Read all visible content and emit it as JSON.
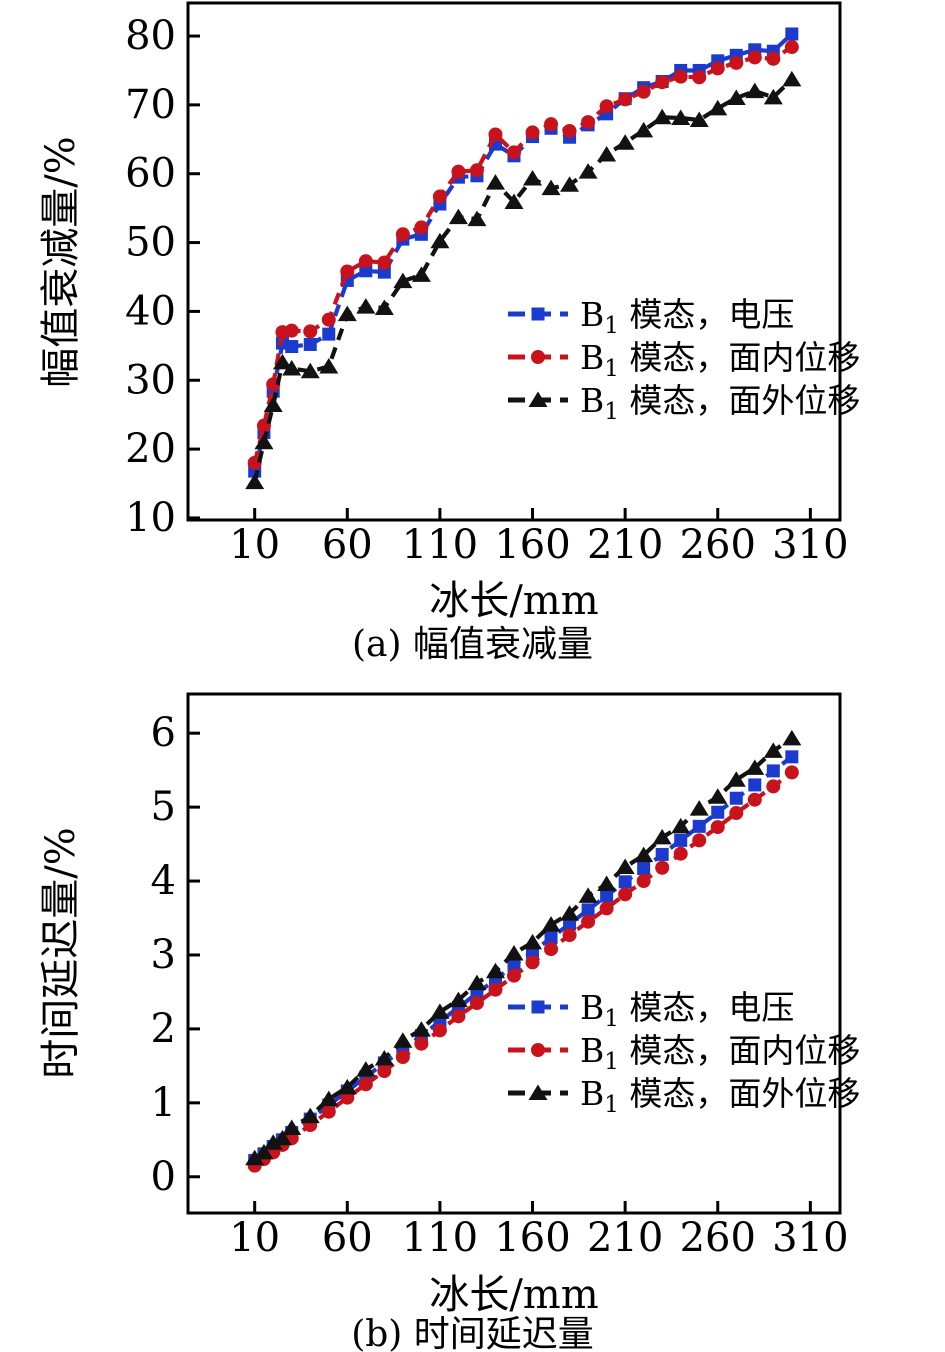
{
  "figure": {
    "background": "#ffffff",
    "axis_color": "#000000"
  },
  "chart_data": [
    {
      "id": "amplitude",
      "type": "line",
      "caption": "(a) 幅值衰减量",
      "xlabel": "冰长/mm",
      "ylabel": "幅值衰减量/%",
      "xlim": [
        -26,
        326
      ],
      "ylim": [
        9.7,
        84.8
      ],
      "xticks": [
        10,
        60,
        110,
        160,
        210,
        260,
        310
      ],
      "yticks": [
        10,
        20,
        30,
        40,
        50,
        60,
        70,
        80
      ],
      "grid": false,
      "legend_position": "inside-bottom-right",
      "x": [
        10,
        15,
        20,
        25,
        30,
        40,
        50,
        60,
        70,
        80,
        90,
        100,
        110,
        120,
        130,
        140,
        150,
        160,
        170,
        180,
        190,
        200,
        210,
        220,
        230,
        240,
        250,
        260,
        270,
        280,
        290,
        300
      ],
      "series": [
        {
          "key": "voltage",
          "marker": "square",
          "color": "#1b3bcf",
          "legend": {
            "pre": "B",
            "sub": "1",
            "post": " 模态，电压"
          },
          "values": [
            16.8,
            22.4,
            28.4,
            35.4,
            34.9,
            35.2,
            36.7,
            44.5,
            45.9,
            45.7,
            50.5,
            51.2,
            55.6,
            59.5,
            59.7,
            64.3,
            62.6,
            65.4,
            66.6,
            65.3,
            67.1,
            68.7,
            70.9,
            72.5,
            73.4,
            75.0,
            75.0,
            76.4,
            77.2,
            78.0,
            77.8,
            80.3
          ]
        },
        {
          "key": "in-plane",
          "marker": "circle",
          "color": "#c8131c",
          "legend": {
            "pre": "B",
            "sub": "1",
            "post": " 模态，面内位移"
          },
          "values": [
            18.0,
            23.4,
            29.4,
            37.0,
            37.2,
            37.1,
            38.8,
            45.8,
            47.3,
            47.1,
            51.2,
            52.2,
            56.7,
            60.3,
            60.5,
            65.7,
            63.1,
            66.0,
            67.2,
            66.2,
            67.5,
            69.8,
            70.8,
            71.9,
            73.3,
            74.1,
            74.0,
            75.3,
            76.1,
            76.9,
            76.7,
            78.4
          ]
        },
        {
          "key": "out-of-plane",
          "marker": "triangle",
          "color": "#121212",
          "legend": {
            "pre": "B",
            "sub": "1",
            "post": " 模态，面外位移"
          },
          "values": [
            15.2,
            21.0,
            26.4,
            32.6,
            31.7,
            31.3,
            32.0,
            39.6,
            40.7,
            40.5,
            44.4,
            45.3,
            50.2,
            53.7,
            53.4,
            58.7,
            55.9,
            59.3,
            57.9,
            58.4,
            60.3,
            62.8,
            64.5,
            66.3,
            68.2,
            68.1,
            67.8,
            69.5,
            71.0,
            72.0,
            71.1,
            73.7
          ]
        }
      ]
    },
    {
      "id": "time-delay",
      "type": "line",
      "caption": "(b) 时间延迟量",
      "xlabel": "冰长/mm",
      "ylabel": "时间延迟量/%",
      "xlim": [
        -26,
        326
      ],
      "ylim": [
        -0.49,
        6.53
      ],
      "xticks": [
        10,
        60,
        110,
        160,
        210,
        260,
        310
      ],
      "yticks": [
        0,
        1,
        2,
        3,
        4,
        5,
        6
      ],
      "grid": false,
      "legend_position": "inside-bottom-right",
      "x": [
        10,
        15,
        20,
        25,
        30,
        40,
        50,
        60,
        70,
        80,
        90,
        100,
        110,
        120,
        130,
        140,
        150,
        160,
        170,
        180,
        190,
        200,
        210,
        220,
        230,
        240,
        250,
        260,
        270,
        280,
        290,
        300
      ],
      "series": [
        {
          "key": "voltage",
          "marker": "square",
          "color": "#1b3bcf",
          "legend": {
            "pre": "B",
            "sub": "1",
            "post": " 模态，电压"
          },
          "values": [
            0.22,
            0.31,
            0.41,
            0.5,
            0.6,
            0.78,
            0.97,
            1.16,
            1.35,
            1.54,
            1.72,
            1.91,
            2.1,
            2.29,
            2.48,
            2.67,
            2.86,
            3.04,
            3.23,
            3.42,
            3.61,
            3.8,
            3.99,
            4.17,
            4.36,
            4.55,
            4.74,
            4.93,
            5.12,
            5.3,
            5.49,
            5.68
          ]
        },
        {
          "key": "in-plane",
          "marker": "circle",
          "color": "#c8131c",
          "legend": {
            "pre": "B",
            "sub": "1",
            "post": " 模态，面内位移"
          },
          "values": [
            0.15,
            0.24,
            0.33,
            0.43,
            0.52,
            0.7,
            0.88,
            1.07,
            1.25,
            1.43,
            1.62,
            1.8,
            1.98,
            2.17,
            2.35,
            2.53,
            2.72,
            2.9,
            3.08,
            3.27,
            3.45,
            3.63,
            3.82,
            4.0,
            4.18,
            4.37,
            4.55,
            4.73,
            4.92,
            5.1,
            5.28,
            5.47
          ]
        },
        {
          "key": "out-of-plane",
          "marker": "triangle",
          "color": "#121212",
          "legend": {
            "pre": "B",
            "sub": "1",
            "post": " 模态，面外位移"
          },
          "values": [
            0.25,
            0.33,
            0.46,
            0.52,
            0.66,
            0.82,
            1.05,
            1.21,
            1.45,
            1.6,
            1.84,
            1.99,
            2.23,
            2.39,
            2.62,
            2.78,
            3.02,
            3.17,
            3.41,
            3.56,
            3.8,
            3.96,
            4.19,
            4.35,
            4.59,
            4.74,
            4.98,
            5.14,
            5.37,
            5.53,
            5.76,
            5.93
          ]
        }
      ]
    }
  ]
}
